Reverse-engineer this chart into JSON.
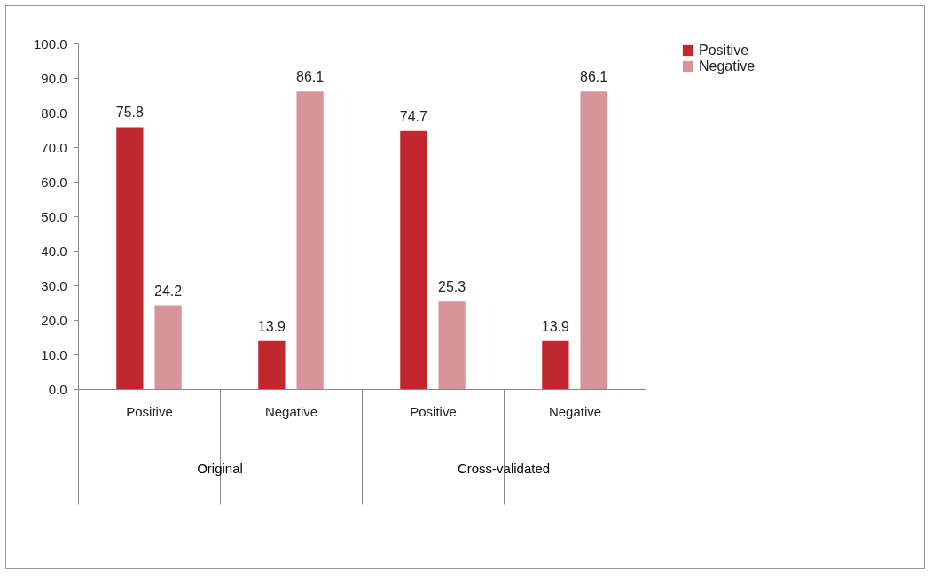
{
  "chart_data": {
    "type": "bar",
    "categories": [
      "Positive",
      "Negative",
      "Positive",
      "Negative"
    ],
    "series": [
      {
        "name": "Positive",
        "color": "#c0282d",
        "values": [
          75.8,
          13.9,
          74.7,
          13.9
        ]
      },
      {
        "name": "Negative",
        "color": "#d9939a",
        "values": [
          24.2,
          86.1,
          25.3,
          86.1
        ]
      }
    ],
    "ylim": [
      0,
      100
    ],
    "yticks": [
      {
        "value": 0,
        "label": "0.0"
      },
      {
        "value": 10,
        "label": "10.0"
      },
      {
        "value": 20,
        "label": "20.0"
      },
      {
        "value": 30,
        "label": "30.0"
      },
      {
        "value": 40,
        "label": "40.0"
      },
      {
        "value": 50,
        "label": "50.0"
      },
      {
        "value": 60,
        "label": "60.0"
      },
      {
        "value": 70,
        "label": "70.0"
      },
      {
        "value": 80,
        "label": "80.0"
      },
      {
        "value": 90,
        "label": "90.0"
      },
      {
        "value": 100,
        "label": "100.0"
      }
    ],
    "annotations": [
      "Original",
      "Cross-validated"
    ],
    "data_labels": true,
    "legend": "right",
    "grid": false
  }
}
